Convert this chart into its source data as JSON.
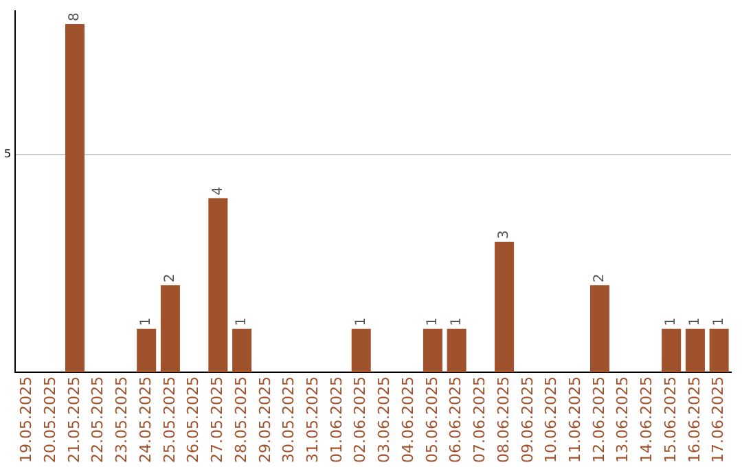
{
  "chart_data": {
    "type": "bar",
    "categories": [
      "19.05.2025",
      "20.05.2025",
      "21.05.2025",
      "22.05.2025",
      "23.05.2025",
      "24.05.2025",
      "25.05.2025",
      "26.05.2025",
      "27.05.2025",
      "28.05.2025",
      "29.05.2025",
      "30.05.2025",
      "31.05.2025",
      "01.06.2025",
      "02.06.2025",
      "03.06.2025",
      "04.06.2025",
      "05.06.2025",
      "06.06.2025",
      "07.06.2025",
      "08.06.2025",
      "09.06.2025",
      "10.06.2025",
      "11.06.2025",
      "12.06.2025",
      "13.06.2025",
      "14.06.2025",
      "15.06.2025",
      "16.06.2025",
      "17.06.2025"
    ],
    "values": [
      0,
      0,
      8,
      0,
      0,
      1,
      2,
      0,
      4,
      1,
      0,
      0,
      0,
      0,
      1,
      0,
      0,
      1,
      1,
      0,
      3,
      0,
      0,
      0,
      2,
      0,
      0,
      1,
      1,
      1
    ],
    "value_labels": [
      null,
      null,
      "8",
      null,
      null,
      "1",
      "2",
      null,
      "4",
      "1",
      null,
      null,
      null,
      null,
      "1",
      null,
      null,
      "1",
      "1",
      null,
      "3",
      null,
      null,
      null,
      "2",
      null,
      null,
      "1",
      "1",
      "1"
    ],
    "color": "#a0522d",
    "ylim": [
      0,
      8.3
    ],
    "yticks": [
      5
    ],
    "grid": "y",
    "legend": false
  }
}
